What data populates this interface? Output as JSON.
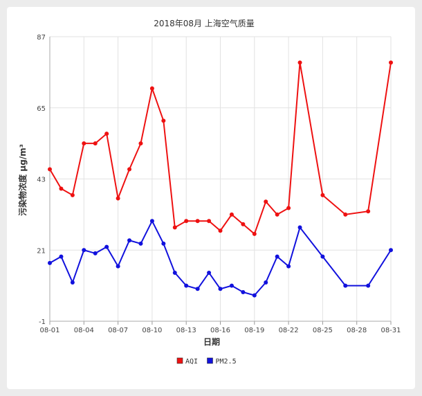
{
  "chart_data": {
    "type": "line",
    "title": "2018年08月 上海空气质量",
    "xlabel": "日期",
    "ylabel": "污染物浓度 μg/m³",
    "ylim": [
      -1,
      87
    ],
    "yticks": [
      -1,
      21,
      43,
      65,
      87
    ],
    "xticks": [
      "08-01",
      "08-04",
      "08-07",
      "08-10",
      "08-13",
      "08-16",
      "08-19",
      "08-22",
      "08-25",
      "08-28",
      "08-31"
    ],
    "grid": true,
    "legend_position": "bottom",
    "x": [
      "08-01",
      "08-02",
      "08-03",
      "08-04",
      "08-05",
      "08-06",
      "08-07",
      "08-08",
      "08-09",
      "08-10",
      "08-11",
      "08-12",
      "08-13",
      "08-14",
      "08-15",
      "08-16",
      "08-17",
      "08-18",
      "08-19",
      "08-20",
      "08-21",
      "08-22",
      "08-23",
      "08-25",
      "08-27",
      "08-29",
      "08-31"
    ],
    "series": [
      {
        "name": "AQI",
        "color": "#ee1111",
        "values": [
          46,
          40,
          38,
          54,
          54,
          57,
          37,
          46,
          54,
          71,
          61,
          28,
          30,
          30,
          30,
          27,
          32,
          29,
          26,
          36,
          32,
          34,
          79,
          38,
          32,
          33,
          79
        ]
      },
      {
        "name": "PM2.5",
        "color": "#1111dd",
        "values": [
          17,
          19,
          11,
          21,
          20,
          22,
          16,
          24,
          23,
          30,
          23,
          14,
          10,
          9,
          14,
          9,
          10,
          8,
          7,
          11,
          19,
          16,
          28,
          19,
          10,
          10,
          21
        ]
      }
    ]
  }
}
